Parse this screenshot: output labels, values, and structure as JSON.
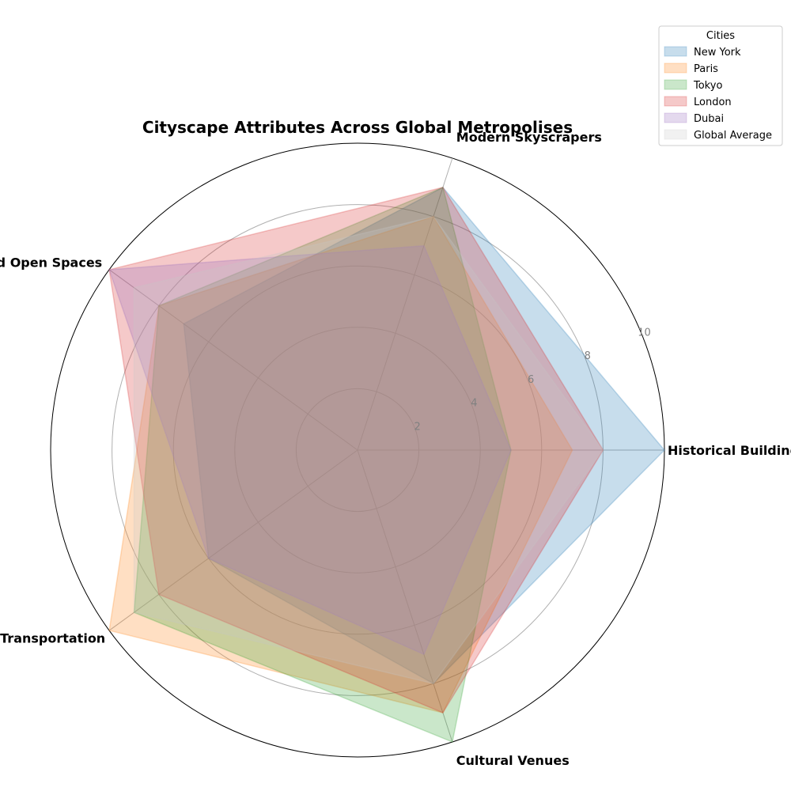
{
  "chart_data": {
    "type": "radar",
    "title": "Cityscape Attributes Across Global Metropolises",
    "categories": [
      "Historical Buildings",
      "Modern Skyscrapers",
      "Parks and Open Spaces",
      "Public Transportation",
      "Cultural Venues"
    ],
    "rlim": [
      0,
      10
    ],
    "rticks": [
      2,
      4,
      6,
      8,
      10
    ],
    "grid": true,
    "legend": {
      "title": "Cities",
      "placement": "top-right"
    },
    "series": [
      {
        "name": "New York",
        "values": [
          10,
          9,
          7,
          6,
          8
        ],
        "color": "#1f77b4"
      },
      {
        "name": "Paris",
        "values": [
          7,
          8,
          8,
          10,
          9
        ],
        "color": "#ff7f0e"
      },
      {
        "name": "Tokyo",
        "values": [
          5,
          9,
          8,
          9,
          10
        ],
        "color": "#2ca02c"
      },
      {
        "name": "London",
        "values": [
          8,
          9,
          10,
          8,
          9
        ],
        "color": "#d62728"
      },
      {
        "name": "Dubai",
        "values": [
          5,
          7,
          10,
          6,
          7
        ],
        "color": "#9467bd"
      },
      {
        "name": "Global Average",
        "values": [
          8,
          8,
          9,
          9,
          8
        ],
        "color": "#c7c7c7"
      }
    ]
  }
}
